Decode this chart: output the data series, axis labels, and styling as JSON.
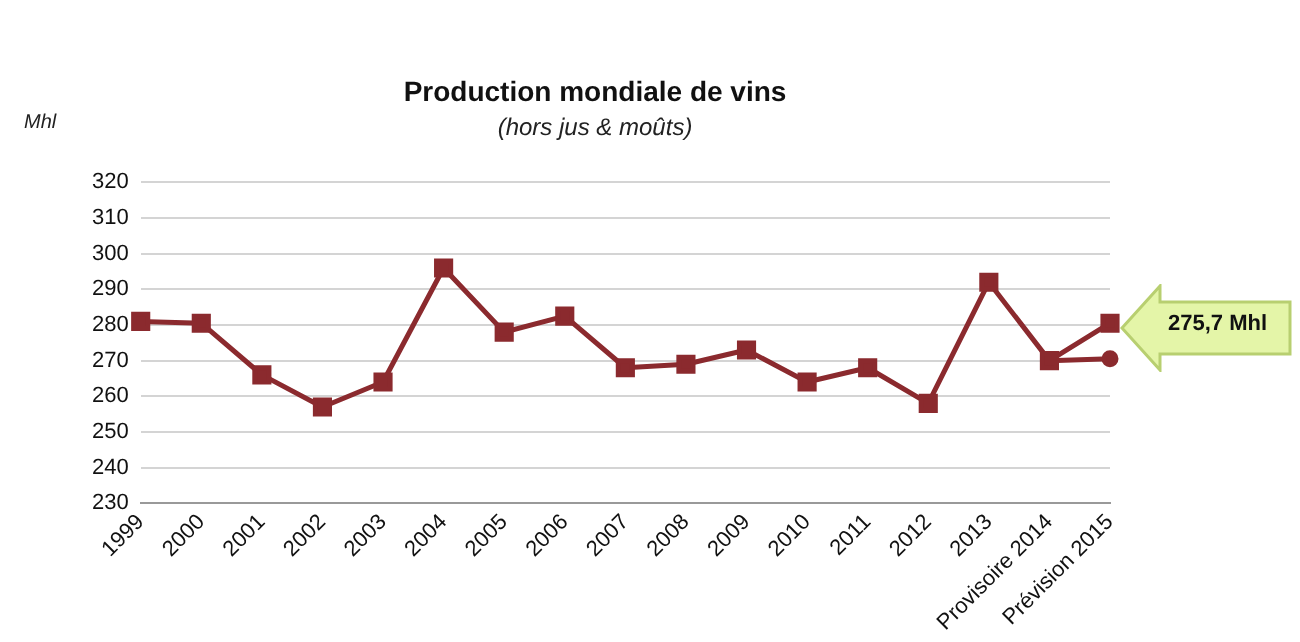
{
  "chart_data": {
    "type": "line",
    "title": "Production mondiale de vins",
    "subtitle": "(hors jus & moûts)",
    "ylabel": "Mhl",
    "categories": [
      "1999",
      "2000",
      "2001",
      "2002",
      "2003",
      "2004",
      "2005",
      "2006",
      "2007",
      "2008",
      "2009",
      "2010",
      "2011",
      "2012",
      "2013",
      "Provisoire 2014",
      "Prévision 2015"
    ],
    "series": [
      {
        "color": "#8b2a2e",
        "marker": "square",
        "values": [
          281,
          280.5,
          266,
          257,
          264,
          296,
          278,
          282.5,
          268,
          269,
          273,
          264,
          268,
          258,
          292,
          270,
          280.5
        ]
      },
      {
        "color": "#8b2a2e",
        "marker": "circle",
        "values": [
          null,
          null,
          null,
          null,
          null,
          null,
          null,
          null,
          null,
          null,
          null,
          null,
          null,
          null,
          null,
          270,
          270.5
        ]
      }
    ],
    "ylim": [
      230,
      320
    ],
    "yticks": [
      230,
      240,
      250,
      260,
      270,
      280,
      290,
      300,
      310,
      320
    ],
    "grid": "y",
    "legend": false,
    "annotations": [
      "275,7 Mhl"
    ]
  }
}
